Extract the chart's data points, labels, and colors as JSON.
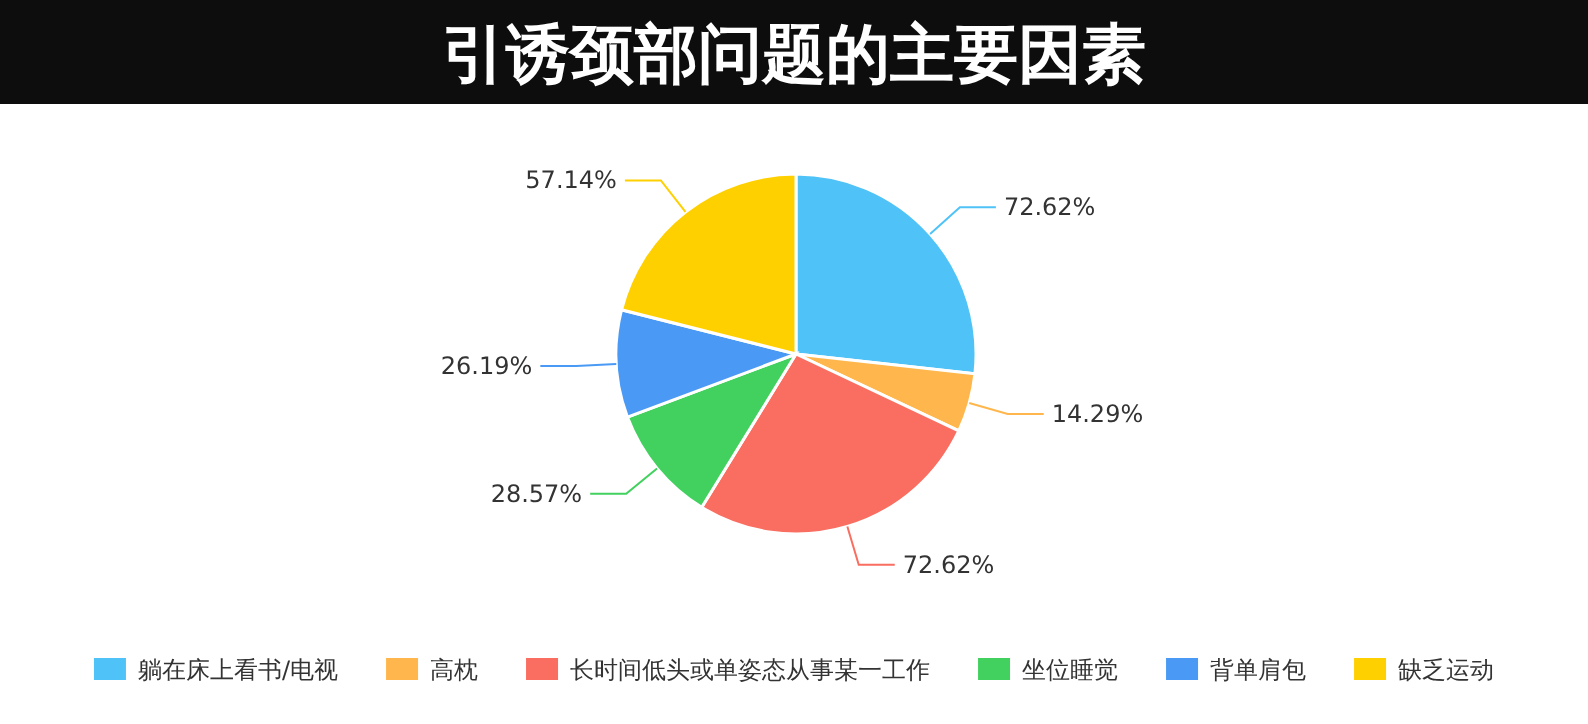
{
  "chart_data": {
    "type": "pie",
    "title": "引诱颈部问题的主要因素",
    "categories": [
      "躺在床上看书/电视",
      "高枕",
      "长时间低头或单姿态从事某一工作",
      "坐位睡觉",
      "背单肩包",
      "缺乏运动"
    ],
    "values": [
      72.62,
      14.29,
      72.62,
      28.57,
      26.19,
      57.14
    ],
    "value_labels": [
      "72.62%",
      "14.29%",
      "72.62%",
      "28.57%",
      "26.19%",
      "57.14%"
    ],
    "colors": [
      "#4fc3f7",
      "#ffb74d",
      "#f96e60",
      "#42d15f",
      "#4a9af5",
      "#ffd000"
    ],
    "legend": "bottom"
  }
}
